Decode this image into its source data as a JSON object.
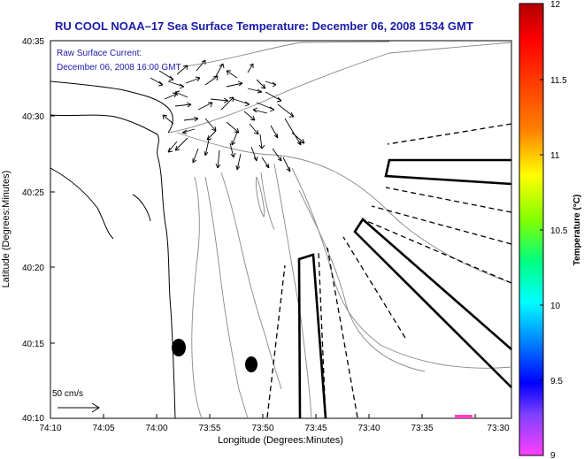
{
  "title": "RU COOL  NOAA–17  Sea Surface Temperature:  December 06, 2008 1534 GMT",
  "legend": {
    "line1": "Raw Surface Current:",
    "line2": "December 06, 2008 16:00 GMT"
  },
  "scale_label": "50 cm/s",
  "axes": {
    "xlabel": "Longitude (Degrees:Minutes)",
    "ylabel": "Latitude (Degrees:Minutes)",
    "x_ticks": [
      "74:10",
      "74:05",
      "74:00",
      "73:55",
      "73:50",
      "73:45",
      "73:40",
      "73:35",
      "73:30"
    ],
    "y_ticks": [
      "40:35",
      "40:30",
      "40:25",
      "40:20",
      "40:15",
      "40:10"
    ]
  },
  "colorbar": {
    "label": "Temperature (°C)",
    "min": 9,
    "max": 12,
    "ticks": [
      "12",
      "11.5",
      "11",
      "10.5",
      "10",
      "9.5",
      "9"
    ],
    "colors": [
      "#b00000",
      "#ff0000",
      "#ff8000",
      "#ffff00",
      "#80ff00",
      "#00ff80",
      "#00ffff",
      "#0080ff",
      "#0000ff",
      "#8040ff",
      "#ff40ff"
    ]
  },
  "colors": {
    "title": "#1a1aa8",
    "legend_text": "#1a1aa8",
    "contour": "#888888"
  }
}
